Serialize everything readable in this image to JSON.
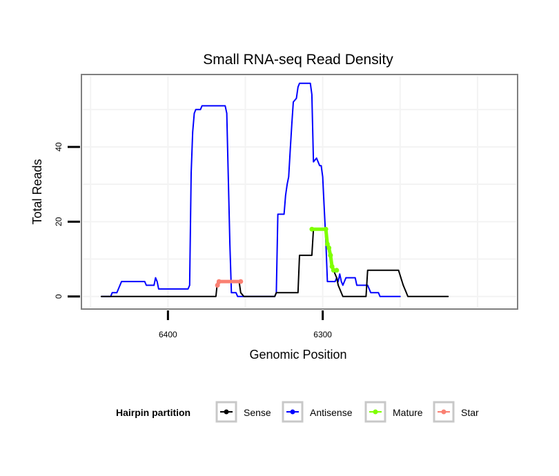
{
  "chart_data": {
    "type": "line",
    "title": "Small RNA-seq Read Density",
    "xlabel": "Genomic Position",
    "ylabel": "Total Reads",
    "x_reversed": true,
    "xlim": [
      6455,
      6175
    ],
    "ylim": [
      -3,
      59
    ],
    "x_ticks": [
      6400,
      6300
    ],
    "y_ticks": [
      0,
      20,
      40
    ],
    "legend": {
      "title": "Hairpin partition",
      "position": "bottom",
      "entries": [
        {
          "name": "Sense",
          "color": "#000000"
        },
        {
          "name": "Antisense",
          "color": "#0000ff"
        },
        {
          "name": "Mature",
          "color": "#7fff00"
        },
        {
          "name": "Star",
          "color": "#fa8072"
        }
      ]
    },
    "series": [
      {
        "name": "Antisense",
        "color": "#0000ff",
        "points": [
          [
            6443,
            0
          ],
          [
            6437,
            0
          ],
          [
            6436,
            1
          ],
          [
            6433,
            1
          ],
          [
            6432,
            2
          ],
          [
            6430,
            4
          ],
          [
            6415,
            4
          ],
          [
            6414,
            3
          ],
          [
            6409,
            3
          ],
          [
            6408,
            5
          ],
          [
            6407,
            4
          ],
          [
            6406,
            2
          ],
          [
            6387,
            2
          ],
          [
            6386,
            3
          ],
          [
            6385,
            33
          ],
          [
            6384,
            44
          ],
          [
            6383,
            49
          ],
          [
            6382,
            50
          ],
          [
            6379,
            50
          ],
          [
            6378,
            51
          ],
          [
            6363,
            51
          ],
          [
            6362,
            49
          ],
          [
            6360,
            14
          ],
          [
            6359,
            1
          ],
          [
            6356,
            1
          ],
          [
            6355,
            0
          ],
          [
            6331,
            0
          ],
          [
            6330,
            1
          ],
          [
            6329,
            22
          ],
          [
            6325,
            22
          ],
          [
            6324,
            27
          ],
          [
            6323,
            30
          ],
          [
            6322,
            32
          ],
          [
            6321,
            39
          ],
          [
            6320,
            46
          ],
          [
            6319,
            52
          ],
          [
            6317,
            53
          ],
          [
            6316,
            56
          ],
          [
            6315,
            57
          ],
          [
            6308,
            57
          ],
          [
            6307,
            54
          ],
          [
            6306,
            36
          ],
          [
            6304,
            37
          ],
          [
            6302,
            35
          ],
          [
            6301,
            35
          ],
          [
            6300,
            32
          ],
          [
            6298,
            15
          ],
          [
            6297,
            4
          ],
          [
            6292,
            4
          ],
          [
            6291,
            5
          ],
          [
            6290,
            4
          ],
          [
            6289,
            6
          ],
          [
            6288,
            4
          ],
          [
            6287,
            3
          ],
          [
            6285,
            5
          ],
          [
            6279,
            5
          ],
          [
            6278,
            3
          ],
          [
            6271,
            3
          ],
          [
            6269,
            1
          ],
          [
            6264,
            1
          ],
          [
            6263,
            0
          ],
          [
            6250,
            0
          ]
        ]
      },
      {
        "name": "Sense",
        "color": "#000000",
        "points": [
          [
            6443,
            0
          ],
          [
            6369,
            0
          ],
          [
            6368,
            4
          ],
          [
            6354,
            4
          ],
          [
            6353,
            1
          ],
          [
            6351,
            0
          ],
          [
            6331,
            0
          ],
          [
            6330,
            1
          ],
          [
            6316,
            1
          ],
          [
            6315,
            11
          ],
          [
            6307,
            11
          ],
          [
            6306,
            18
          ],
          [
            6298,
            18
          ],
          [
            6297,
            14
          ],
          [
            6295,
            11
          ],
          [
            6293,
            7
          ],
          [
            6291,
            5
          ],
          [
            6290,
            3
          ],
          [
            6289,
            2
          ],
          [
            6287,
            0
          ],
          [
            6272,
            0
          ],
          [
            6271,
            7
          ],
          [
            6251,
            7
          ],
          [
            6248,
            3
          ],
          [
            6246,
            1
          ],
          [
            6245,
            0
          ],
          [
            6219,
            0
          ]
        ]
      },
      {
        "name": "Mature",
        "color": "#7fff00",
        "points": [
          [
            6307,
            18
          ],
          [
            6298,
            18
          ],
          [
            6297,
            14
          ],
          [
            6296,
            13
          ],
          [
            6295,
            11
          ],
          [
            6294,
            8
          ],
          [
            6293,
            7
          ],
          [
            6291,
            7
          ]
        ]
      },
      {
        "name": "Star",
        "color": "#fa8072",
        "points": [
          [
            6368,
            3
          ],
          [
            6367,
            4
          ],
          [
            6353,
            4
          ]
        ]
      }
    ]
  }
}
